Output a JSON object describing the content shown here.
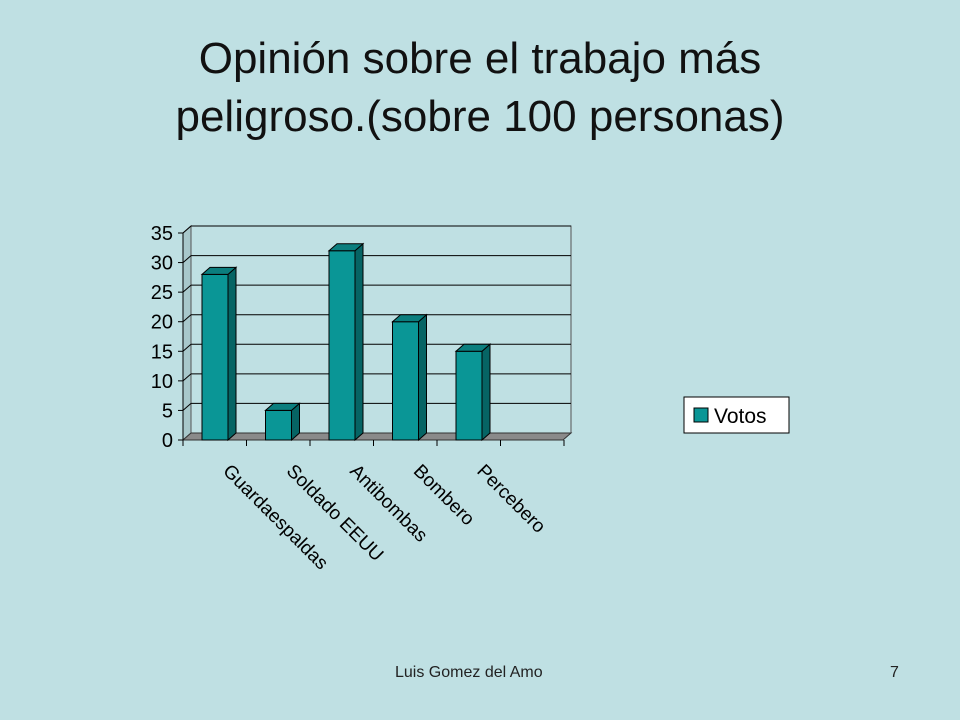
{
  "slide": {
    "title_line1": "Opinión sobre el trabajo más",
    "title_line2": "peligroso.(sobre 100 personas)",
    "footer_author": "Luis Gomez del Amo",
    "page_number": "7"
  },
  "chart_data": {
    "type": "bar",
    "style": "3d-column",
    "categories": [
      "Guardaespaldas",
      "Soldado EEUU",
      "Antibombas",
      "Bombero",
      "Percebero"
    ],
    "series": [
      {
        "name": "Votos",
        "values": [
          28,
          5,
          32,
          20,
          15
        ],
        "color": "#0a9696"
      }
    ],
    "ylim": [
      0,
      35
    ],
    "yticks": [
      0,
      5,
      10,
      15,
      20,
      25,
      30,
      35
    ],
    "grid": true,
    "legend": "right"
  }
}
